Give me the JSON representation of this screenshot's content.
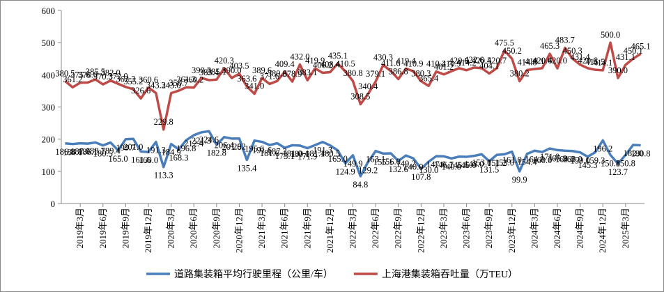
{
  "chart_data": {
    "type": "line",
    "categories": [
      null,
      null,
      "2019年3月",
      null,
      null,
      "2019年6月",
      null,
      null,
      "2019年9月",
      null,
      null,
      "2019年12月",
      null,
      null,
      "2020年3月",
      null,
      null,
      "2020年6月",
      null,
      null,
      "2020年9月",
      null,
      null,
      "2020年12月",
      null,
      null,
      "2021年3月",
      null,
      null,
      "2021年6月",
      null,
      null,
      "2021年9月",
      null,
      null,
      "2021年12月",
      null,
      null,
      "2022年3月",
      null,
      null,
      "2022年6月",
      null,
      null,
      "2022年9月",
      null,
      null,
      "2022年12月",
      null,
      null,
      "2023年3月",
      null,
      null,
      "2023年6月",
      null,
      null,
      "2023年9月",
      null,
      null,
      "2023年12月",
      null,
      null,
      "2024年3月",
      null,
      null,
      "2024年6月",
      null,
      null,
      "2024年9月",
      null,
      null,
      "2024年12月",
      null,
      null,
      "2025年3月",
      null,
      null
    ],
    "series": [
      {
        "name": "道路集装箱平均行驶里程（公里/车）",
        "color": "#4a7ebb",
        "values": [
          186.8,
          184.8,
          187.0,
          186.1,
          189.7,
          180.5,
          189.4,
          165.0,
          199.7,
          201.0,
          161.6,
          160.0,
          191.3,
          113.3,
          184.9,
          168.3,
          196.8,
          212.4,
          221.3,
          224.6,
          182.8,
          206.4,
          201.8,
          202.0,
          135.4,
          195.6,
          191.6,
          181.6,
          187.3,
          173.1,
          181.0,
          180.0,
          171.9,
          181.4,
          191.3,
          180.5,
          165.0,
          124.9,
          149.9,
          84.8,
          129.2,
          163.1,
          155.1,
          156.0,
          132.6,
          149.2,
          140.0,
          107.8,
          130.0,
          147.0,
          146.7,
          140.0,
          145.6,
          145.0,
          148.0,
          153.0,
          131.5,
          151.2,
          153.0,
          161.0,
          99.9,
          154.4,
          164.0,
          160.0,
          171.0,
          165.9,
          164.0,
          163.0,
          159.0,
          145.3,
          159.3,
          196.2,
          150.8,
          123.7,
          150.8,
          182.0,
          180.8
        ],
        "value_labels": [
          "186.8",
          "184.8",
          "187.0",
          "186.1",
          "189.7",
          "180.5",
          "189.4",
          "165.0",
          "199.7",
          "201.0",
          "161.6",
          "160.0",
          "191.3",
          "113.3",
          "184.9",
          "168.3",
          "196.8",
          "212.4",
          "221.3",
          "224.6",
          "182.8",
          "206.4",
          "201.8",
          "202",
          "135.4",
          "195.6",
          "191.6",
          "181.6",
          "187.3",
          "173.1",
          "181.0",
          "180.0",
          "171.9",
          "181.4",
          "191.3",
          "180.5",
          "165.0",
          "124.9",
          "149.9",
          "84.8",
          "129.2",
          "163.1",
          "155.1",
          "156.0",
          "132.6",
          "149.2",
          "140.0",
          "107.8",
          "130.0",
          "147.0",
          "146.7",
          "140.0",
          "145.6",
          "145.0",
          "148.0",
          "153.0",
          "131.5",
          "151.2",
          "153.0",
          "161.0",
          "99.9",
          "154.4",
          "164.0",
          "160.0",
          "171.0",
          "165.9",
          "164.0",
          "163.0",
          "159.0",
          "145.3",
          "159.3",
          "196.2",
          "150.8",
          "123.7",
          "150.8",
          "182.0",
          "180.8"
        ]
      },
      {
        "name": "上海港集装箱吞吐量（万TEU）",
        "color": "#be4b48",
        "values": [
          380.5,
          361.2,
          375.6,
          376.0,
          385.5,
          370.3,
          382.0,
          372.0,
          362.3,
          355.2,
          326.6,
          360.6,
          343.2,
          229.8,
          343.0,
          350.7,
          361.3,
          360.2,
          390.3,
          383.4,
          385.1,
          420.3,
          390.0,
          403.5,
          363.6,
          341.0,
          389.6,
          371.6,
          380.6,
          409.4,
          378.9,
          432.0,
          383.1,
          419.9,
          406.2,
          408.4,
          435.1,
          410.5,
          380.8,
          308.5,
          340.4,
          379.1,
          430.3,
          411.6,
          386.8,
          419.4,
          410.9,
          380.3,
          365.4,
          410.2,
          401.2,
          410.9,
          420.6,
          414.2,
          422.6,
          420.5,
          404.1,
          420.7,
          475.5,
          450.2,
          380.2,
          414.8,
          418.1,
          420.6,
          465.3,
          420.0,
          483.7,
          450.3,
          431.4,
          420.6,
          415.5,
          414.1,
          500.0,
          390.0,
          431.1,
          450.1,
          465.1
        ],
        "value_labels": [
          "380.5",
          "361.2",
          "375.6",
          "376.0",
          "385.5",
          "370.3",
          "382.0",
          "372.0",
          "362.3",
          "355.2",
          "326.6",
          "360.6",
          "343.2",
          "229.8",
          "343.0",
          "350.7",
          "361.3",
          "360.2",
          "390.3",
          "383.4",
          "385.1",
          "420.3",
          "390.0",
          "403.5",
          "363.6",
          "341.0",
          "389.6",
          "371.6",
          "380.6",
          "409.4",
          "378.9",
          "432.0",
          "383.1",
          "419.9",
          "406.2",
          "408.4",
          "435.1",
          "410.5",
          "380.8",
          "308.5",
          "340.4",
          "379.1",
          "430.3",
          "411.6",
          "386.8",
          "419.4",
          "410.9",
          "380.3",
          "365.4",
          "410.2",
          "401.2",
          "410.9",
          "420.6",
          "414.2",
          "422.6",
          "420.5",
          "404.1",
          "420.7",
          "475.5",
          "450.2",
          "380.2",
          "414.8",
          "418.1",
          "420.6",
          "465.3",
          "420.0",
          "483.7",
          "450.3",
          "431.4",
          "420.6",
          "415.5",
          "414.1",
          "500.0",
          "390.0",
          "431.1",
          "450.1",
          "465.1"
        ]
      }
    ],
    "ylim": [
      0,
      600
    ],
    "yticks": [
      0,
      100,
      200,
      300,
      400,
      500,
      600
    ],
    "grid": false,
    "legend": "bottom"
  }
}
